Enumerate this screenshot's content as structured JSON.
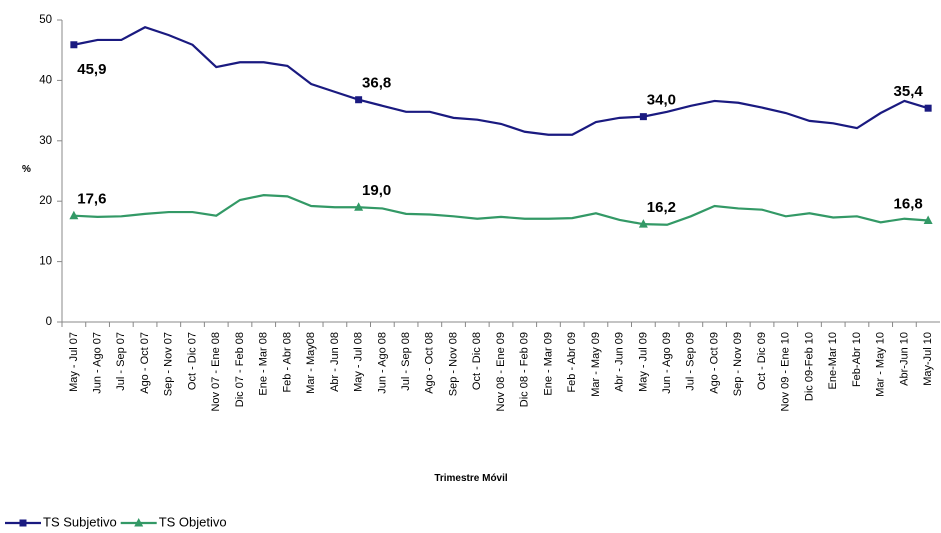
{
  "chart_data": {
    "type": "line",
    "x_label": "Trimestre Móvil",
    "y_label": "%",
    "categories": [
      "May - Jul 07",
      "Jun - Ago 07",
      "Jul - Sep 07",
      "Ago - Oct 07",
      "Sep - Nov 07",
      "Oct - Dic 07",
      "Nov 07 - Ene 08",
      "Dic 07 - Feb 08",
      "Ene - Mar 08",
      "Feb - Abr 08",
      "Mar - May08",
      "Abr - Jun 08",
      "May - Jul 08",
      "Jun - Ago 08",
      "Jul - Sep 08",
      "Ago - Oct 08",
      "Sep - Nov 08",
      "Oct - Dic 08",
      "Nov 08 - Ene 09",
      "Dic 08 - Feb 09",
      "Ene - Mar 09",
      "Feb - Abr 09",
      "Mar - May 09",
      "Abr - Jun 09",
      "May - Jul 09",
      "Jun - Ago 09",
      "Jul - Sep 09",
      "Ago - Oct 09",
      "Sep - Nov 09",
      "Oct - Dic 09",
      "Nov 09 - Ene 10",
      "Dic 09-Feb 10",
      "Ene-Mar 10",
      "Feb-Abr 10",
      "Mar - May 10",
      "Abr-Jun 10",
      "May-Jul 10"
    ],
    "series": [
      {
        "name": "TS Subjetivo",
        "color": "#1a1a80",
        "marker": "square",
        "values": [
          45.9,
          46.7,
          46.7,
          48.8,
          47.5,
          45.9,
          42.2,
          43.0,
          43.0,
          42.4,
          39.4,
          38.1,
          36.8,
          35.8,
          34.8,
          34.8,
          33.8,
          33.5,
          32.8,
          31.5,
          31.0,
          31.0,
          33.1,
          33.8,
          34.0,
          34.8,
          35.8,
          36.6,
          36.3,
          35.5,
          34.6,
          33.3,
          32.9,
          32.1,
          34.6,
          36.6,
          35.4
        ],
        "value_labels": [
          "45,9",
          null,
          null,
          null,
          null,
          null,
          null,
          null,
          null,
          null,
          null,
          null,
          "36,8",
          null,
          null,
          null,
          null,
          null,
          null,
          null,
          null,
          null,
          null,
          null,
          "34,0",
          null,
          null,
          null,
          null,
          null,
          null,
          null,
          null,
          null,
          null,
          null,
          "35,4"
        ]
      },
      {
        "name": "TS Objetivo",
        "color": "#339966",
        "marker": "triangle",
        "values": [
          17.6,
          17.4,
          17.5,
          17.9,
          18.2,
          18.2,
          17.6,
          20.2,
          21.0,
          20.8,
          19.2,
          19.0,
          19.0,
          18.8,
          17.9,
          17.8,
          17.5,
          17.1,
          17.4,
          17.1,
          17.1,
          17.2,
          18.0,
          16.9,
          16.2,
          16.1,
          17.5,
          19.2,
          18.8,
          18.6,
          17.5,
          18.0,
          17.3,
          17.5,
          16.5,
          17.1,
          16.8
        ],
        "value_labels": [
          "17,6",
          null,
          null,
          null,
          null,
          null,
          null,
          null,
          null,
          null,
          null,
          null,
          "19,0",
          null,
          null,
          null,
          null,
          null,
          null,
          null,
          null,
          null,
          null,
          null,
          "16,2",
          null,
          null,
          null,
          null,
          null,
          null,
          null,
          null,
          null,
          null,
          null,
          "16,8"
        ]
      }
    ],
    "ylim": [
      0,
      50
    ],
    "yticks": [
      0,
      10,
      20,
      30,
      40,
      50
    ],
    "grid": false,
    "legend": "bottom-left"
  }
}
